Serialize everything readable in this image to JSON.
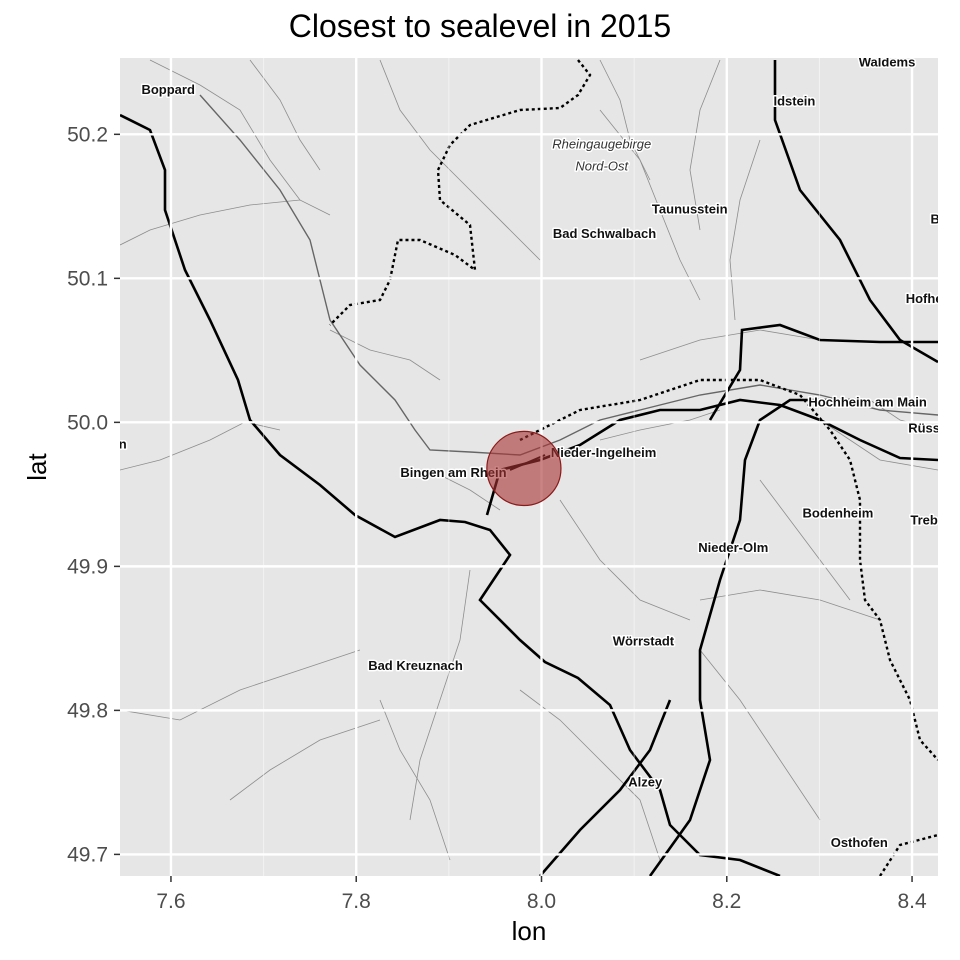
{
  "title": "Closest to sealevel in 2015",
  "axes": {
    "x": {
      "label": "lon",
      "range": [
        7.545,
        8.428
      ],
      "ticks": [
        7.6,
        7.8,
        8.0,
        8.2,
        8.4
      ],
      "tick_labels": [
        "7.6",
        "7.8",
        "8.0",
        "8.2",
        "8.4"
      ]
    },
    "y": {
      "label": "lat",
      "range": [
        49.685,
        50.253
      ],
      "ticks": [
        49.7,
        49.8,
        49.9,
        50.0,
        50.1,
        50.2
      ],
      "tick_labels": [
        "49.7",
        "49.8",
        "49.9",
        "50.0",
        "50.1",
        "50.2"
      ]
    }
  },
  "colors": {
    "panel_background": "#e6e6e6",
    "gridline": "#ffffff",
    "marker_fill": "#a83232",
    "marker_stroke": "#8b1a1a",
    "road": "#000000",
    "minor_line": "#555555"
  },
  "marker": {
    "lon": 7.981,
    "lat": 49.968,
    "radius_deg": 0.04
  },
  "places": [
    {
      "id": "boppard",
      "name": "Boppard",
      "lon": 7.597,
      "lat": 50.228
    },
    {
      "id": "waldems",
      "name": "Waldems",
      "lon": 8.373,
      "lat": 50.247
    },
    {
      "id": "idstein",
      "name": "Idstein",
      "lon": 8.273,
      "lat": 50.22
    },
    {
      "id": "rheingaugebirge",
      "name": "Rheingaugebirge",
      "lon": 8.065,
      "lat": 50.19,
      "italic": true
    },
    {
      "id": "nord-ost",
      "name": "Nord-Ost",
      "lon": 8.065,
      "lat": 50.175,
      "italic": true
    },
    {
      "id": "taunusstein",
      "name": "Taunusstein",
      "lon": 8.16,
      "lat": 50.145
    },
    {
      "id": "bad-schwalbach",
      "name": "Bad Schwalbach",
      "lon": 8.068,
      "lat": 50.128
    },
    {
      "id": "hofheim",
      "name": "Hofhei",
      "lon": 8.415,
      "lat": 50.083
    },
    {
      "id": "b-edge",
      "name": "B",
      "lon": 8.425,
      "lat": 50.138
    },
    {
      "id": "hochheim",
      "name": "Hochheim am Main",
      "lon": 8.352,
      "lat": 50.011
    },
    {
      "id": "russelsheim",
      "name": "Rüss",
      "lon": 8.413,
      "lat": 49.993
    },
    {
      "id": "nieder-ingelheim",
      "name": "Nieder-Ingelheim",
      "lon": 8.067,
      "lat": 49.976
    },
    {
      "id": "bingen",
      "name": "Bingen am Rhein",
      "lon": 7.905,
      "lat": 49.962
    },
    {
      "id": "n-edge",
      "name": "n",
      "lon": 7.548,
      "lat": 49.982
    },
    {
      "id": "bodenheim",
      "name": "Bodenheim",
      "lon": 8.32,
      "lat": 49.934
    },
    {
      "id": "trebur",
      "name": "Treb",
      "lon": 8.413,
      "lat": 49.929
    },
    {
      "id": "nieder-olm",
      "name": "Nieder-Olm",
      "lon": 8.207,
      "lat": 49.91
    },
    {
      "id": "worrstadt",
      "name": "Wörrstadt",
      "lon": 8.11,
      "lat": 49.845
    },
    {
      "id": "bad-kreuznach",
      "name": "Bad Kreuznach",
      "lon": 7.864,
      "lat": 49.828
    },
    {
      "id": "alzey",
      "name": "Alzey",
      "lon": 8.112,
      "lat": 49.747
    },
    {
      "id": "osthofen",
      "name": "Osthofen",
      "lon": 8.343,
      "lat": 49.705
    }
  ],
  "chart_data": {
    "type": "scatter",
    "title": "Closest to sealevel in 2015",
    "xlabel": "lon",
    "ylabel": "lat",
    "xlim": [
      7.545,
      8.428
    ],
    "ylim": [
      49.685,
      50.253
    ],
    "grid": true,
    "points": [
      {
        "x": 7.981,
        "y": 49.968
      }
    ]
  }
}
